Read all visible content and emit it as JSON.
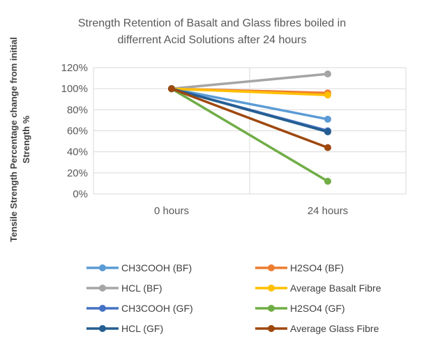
{
  "chart_data": {
    "type": "line",
    "title": [
      "Strength Retention of Basalt and Glass fibres boiled in",
      "differrent Acid Solutions after 24 hours"
    ],
    "ylabel": [
      "Tensile Strength Percentage change from  initial",
      "Strength %"
    ],
    "xlabel": "",
    "categories": [
      "0 hours",
      "24 hours"
    ],
    "ylim": [
      0,
      120
    ],
    "yticks": [
      0,
      20,
      40,
      60,
      80,
      100,
      120
    ],
    "ytick_labels": [
      "0%",
      "20%",
      "40%",
      "60%",
      "80%",
      "100%",
      "120%"
    ],
    "grid": true,
    "legend_position": "bottom",
    "series": [
      {
        "name": "CH3COOH (BF)",
        "color": "#5b9bd5",
        "values": [
          100,
          71
        ]
      },
      {
        "name": "H2SO4 (BF)",
        "color": "#ed7d31",
        "values": [
          100,
          96
        ]
      },
      {
        "name": "HCL (BF)",
        "color": "#a5a5a5",
        "values": [
          100,
          114
        ]
      },
      {
        "name": "Average Basalt Fibre",
        "color": "#ffc000",
        "values": [
          100,
          94
        ]
      },
      {
        "name": "CH3COOH (GF)",
        "color": "#4472c4",
        "values": [
          100,
          60
        ]
      },
      {
        "name": "H2SO4 (GF)",
        "color": "#70ad47",
        "values": [
          100,
          12
        ]
      },
      {
        "name": "HCL (GF)",
        "color": "#255e91",
        "values": [
          100,
          59
        ]
      },
      {
        "name": "Average Glass Fibre",
        "color": "#9e480e",
        "values": [
          100,
          44
        ]
      }
    ]
  }
}
